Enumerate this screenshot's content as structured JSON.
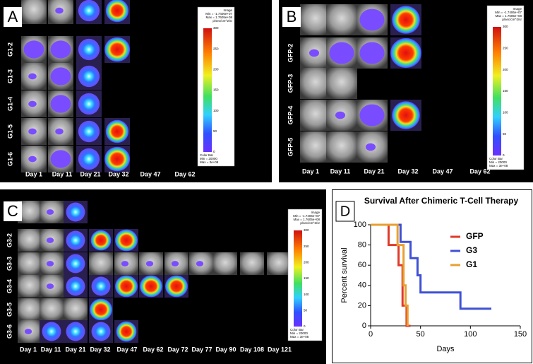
{
  "panels": [
    {
      "label": "A",
      "rows": [
        "G1-2",
        "G1-3",
        "G1-4",
        "G1-5",
        "G1-6"
      ],
      "days": [
        "Day 1",
        "Day 11",
        "Day 21",
        "Day 32",
        "Day 47",
        "Day 62"
      ],
      "colorbar": {
        "header": [
          "Image",
          "Min = -1.7406e+07",
          "Max = 1.7605e+08",
          "p/sec/cm^2/sr"
        ],
        "ticks": [
          300,
          250,
          200,
          150,
          100,
          50,
          0
        ],
        "footer": [
          "Color Bar",
          "Min = 20000",
          "Max = 3e+08"
        ]
      }
    },
    {
      "label": "B",
      "rows": [
        "GFP-2",
        "GFP-3",
        "GFP-4",
        "GFP-5"
      ],
      "days": [
        "Day 1",
        "Day 11",
        "Day 21",
        "Day 32",
        "Day 47",
        "Day 62"
      ],
      "colorbar": {
        "header": [
          "Image",
          "Min = -1.7406e+07",
          "Max = 1.7605e+08",
          "p/sec/cm^2/sr"
        ],
        "ticks": [
          300,
          250,
          200,
          150,
          100,
          50,
          0
        ],
        "footer": [
          "Color Bar",
          "Min = 20000",
          "Max = 3e+08"
        ]
      }
    },
    {
      "label": "C",
      "rows": [
        "G3-2",
        "G3-3",
        "G3-4",
        "G3-5",
        "G3-6"
      ],
      "days": [
        "Day 1",
        "Day 11",
        "Day 21",
        "Day 32",
        "Day 47",
        "Day 62",
        "Day 72",
        "Day 77",
        "Day 90",
        "Day 108",
        "Day 121"
      ],
      "colorbar": {
        "header": [
          "Image",
          "Min = -1.7406e+07",
          "Max = 1.7605e+08",
          "p/sec/cm^2/sr"
        ],
        "ticks": [
          300,
          250,
          200,
          150,
          100,
          50,
          0
        ],
        "footer": [
          "Color Bar",
          "Min = 20000",
          "Max = 3e+08"
        ]
      }
    }
  ],
  "chart_data": {
    "type": "line",
    "panel_label": "D",
    "title": "Survival After Chimeric T-Cell Therapy",
    "x_label": "Days",
    "y_label": "Percent survival",
    "xlim": [
      0,
      150
    ],
    "xticks": [
      0,
      50,
      100,
      150
    ],
    "ylim": [
      0,
      100
    ],
    "yticks": [
      0,
      20,
      40,
      60,
      80,
      100
    ],
    "series": [
      {
        "name": "GFP",
        "color": "#e03a2a",
        "x": [
          0,
          18,
          18,
          28,
          28,
          32,
          32,
          36,
          36,
          40
        ],
        "values": [
          100,
          100,
          80,
          80,
          60,
          60,
          20,
          20,
          0,
          0
        ]
      },
      {
        "name": "G3",
        "color": "#3f51d4",
        "x": [
          0,
          30,
          30,
          40,
          40,
          47,
          47,
          50,
          50,
          90,
          90,
          121
        ],
        "values": [
          100,
          100,
          83,
          83,
          67,
          67,
          50,
          50,
          33,
          33,
          17,
          17
        ]
      },
      {
        "name": "G1",
        "color": "#e8a030",
        "x": [
          0,
          27,
          27,
          33,
          33,
          35,
          35,
          37,
          37
        ],
        "values": [
          100,
          100,
          80,
          80,
          40,
          40,
          20,
          20,
          0
        ]
      }
    ]
  }
}
